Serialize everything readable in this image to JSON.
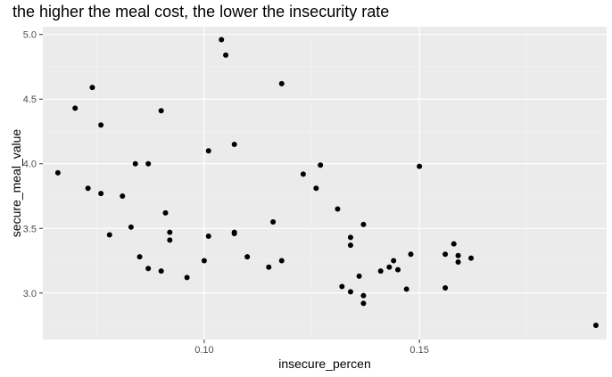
{
  "chart_data": {
    "type": "scatter",
    "title": "the higher the meal cost, the lower the insecurity rate",
    "xlabel": "insecure_percen",
    "ylabel": "secure_meal_value",
    "xlim": [
      0.0625,
      0.1935
    ],
    "ylim": [
      2.64,
      5.06
    ],
    "x_ticks": [
      0.1,
      0.15
    ],
    "x_tick_labels": [
      "0.10",
      "0.15"
    ],
    "y_ticks": [
      3.0,
      3.5,
      4.0,
      4.5,
      5.0
    ],
    "y_tick_labels": [
      "3.0",
      "3.5",
      "4.0",
      "4.5",
      "5.0"
    ],
    "grid": true,
    "legend": "none",
    "colors": {
      "panel": "#ebebeb",
      "grid_major": "#ffffff",
      "grid_minor": "#f4f4f4",
      "point": "#000000",
      "tick": "#333333"
    },
    "points": [
      {
        "x": 0.066,
        "y": 3.93
      },
      {
        "x": 0.07,
        "y": 4.43
      },
      {
        "x": 0.073,
        "y": 3.81
      },
      {
        "x": 0.074,
        "y": 4.59
      },
      {
        "x": 0.076,
        "y": 4.3
      },
      {
        "x": 0.076,
        "y": 3.77
      },
      {
        "x": 0.078,
        "y": 3.45
      },
      {
        "x": 0.081,
        "y": 3.75
      },
      {
        "x": 0.083,
        "y": 3.51
      },
      {
        "x": 0.084,
        "y": 4.0
      },
      {
        "x": 0.085,
        "y": 3.28
      },
      {
        "x": 0.087,
        "y": 4.0
      },
      {
        "x": 0.087,
        "y": 3.19
      },
      {
        "x": 0.09,
        "y": 4.41
      },
      {
        "x": 0.09,
        "y": 3.17
      },
      {
        "x": 0.091,
        "y": 3.62
      },
      {
        "x": 0.092,
        "y": 3.47
      },
      {
        "x": 0.092,
        "y": 3.41
      },
      {
        "x": 0.096,
        "y": 3.12
      },
      {
        "x": 0.1,
        "y": 3.25
      },
      {
        "x": 0.101,
        "y": 4.1
      },
      {
        "x": 0.101,
        "y": 3.44
      },
      {
        "x": 0.104,
        "y": 4.96
      },
      {
        "x": 0.105,
        "y": 4.84
      },
      {
        "x": 0.107,
        "y": 4.15
      },
      {
        "x": 0.107,
        "y": 3.47
      },
      {
        "x": 0.107,
        "y": 3.46
      },
      {
        "x": 0.11,
        "y": 3.28
      },
      {
        "x": 0.115,
        "y": 3.2
      },
      {
        "x": 0.116,
        "y": 3.55
      },
      {
        "x": 0.118,
        "y": 4.62
      },
      {
        "x": 0.118,
        "y": 3.25
      },
      {
        "x": 0.123,
        "y": 3.92
      },
      {
        "x": 0.126,
        "y": 3.81
      },
      {
        "x": 0.127,
        "y": 3.99
      },
      {
        "x": 0.131,
        "y": 3.65
      },
      {
        "x": 0.132,
        "y": 3.05
      },
      {
        "x": 0.134,
        "y": 3.43
      },
      {
        "x": 0.134,
        "y": 3.37
      },
      {
        "x": 0.134,
        "y": 3.01
      },
      {
        "x": 0.136,
        "y": 3.13
      },
      {
        "x": 0.137,
        "y": 3.53
      },
      {
        "x": 0.137,
        "y": 2.98
      },
      {
        "x": 0.137,
        "y": 2.92
      },
      {
        "x": 0.141,
        "y": 3.17
      },
      {
        "x": 0.143,
        "y": 3.2
      },
      {
        "x": 0.144,
        "y": 3.25
      },
      {
        "x": 0.145,
        "y": 3.18
      },
      {
        "x": 0.147,
        "y": 3.03
      },
      {
        "x": 0.148,
        "y": 3.3
      },
      {
        "x": 0.15,
        "y": 3.98
      },
      {
        "x": 0.156,
        "y": 3.3
      },
      {
        "x": 0.156,
        "y": 3.04
      },
      {
        "x": 0.158,
        "y": 3.38
      },
      {
        "x": 0.159,
        "y": 3.29
      },
      {
        "x": 0.159,
        "y": 3.24
      },
      {
        "x": 0.162,
        "y": 3.27
      },
      {
        "x": 0.191,
        "y": 2.75
      }
    ]
  }
}
